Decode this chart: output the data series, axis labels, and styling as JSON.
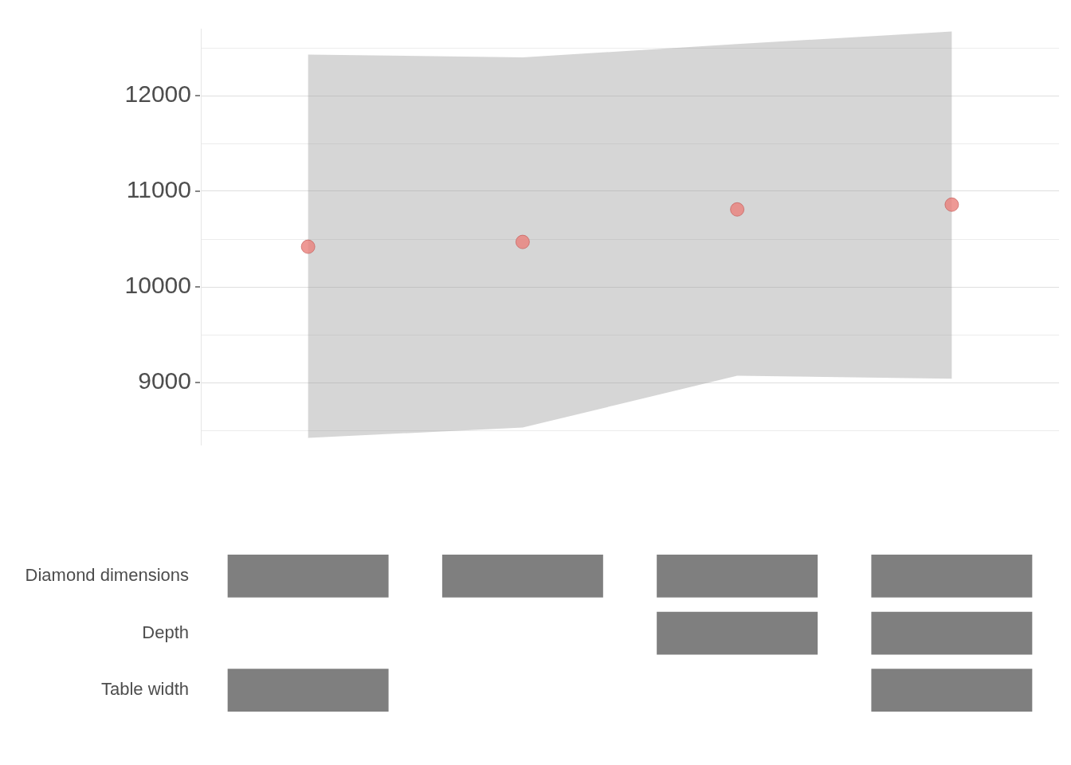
{
  "chart_data": [
    {
      "type": "scatter",
      "categories": [
        null,
        null,
        null,
        null
      ],
      "series": [
        {
          "type": "scatter",
          "color": "#ea7f7a",
          "values": [
            10420,
            10470,
            10810,
            10860
          ],
          "lower": [
            8420,
            8530,
            9070,
            9040
          ],
          "upper": [
            12430,
            12400,
            12540,
            12670
          ]
        }
      ],
      "ylim": [
        8350,
        12700
      ],
      "yticks": [
        {
          "value": 8500,
          "label": null
        },
        9000,
        {
          "value": 9500,
          "label": null
        },
        10000,
        {
          "value": 10500,
          "label": null
        },
        11000,
        {
          "value": 11500,
          "label": null
        },
        12000,
        {
          "value": 12500,
          "label": null
        }
      ],
      "grid": "y",
      "marker": "circle",
      "tick_labels": "y",
      "legend": false
    },
    {
      "type": "heatmap",
      "categories": [
        null,
        null,
        null,
        null
      ],
      "y_categories": [
        "Diamond dimensions",
        "Depth",
        "Table width"
      ],
      "cells": [
        [
          true,
          true,
          true,
          true
        ],
        [
          null,
          null,
          true,
          true
        ],
        [
          true,
          null,
          null,
          true
        ]
      ],
      "color": "#7f7f7f",
      "grid": false,
      "tick_labels": "y",
      "legend": false
    }
  ]
}
